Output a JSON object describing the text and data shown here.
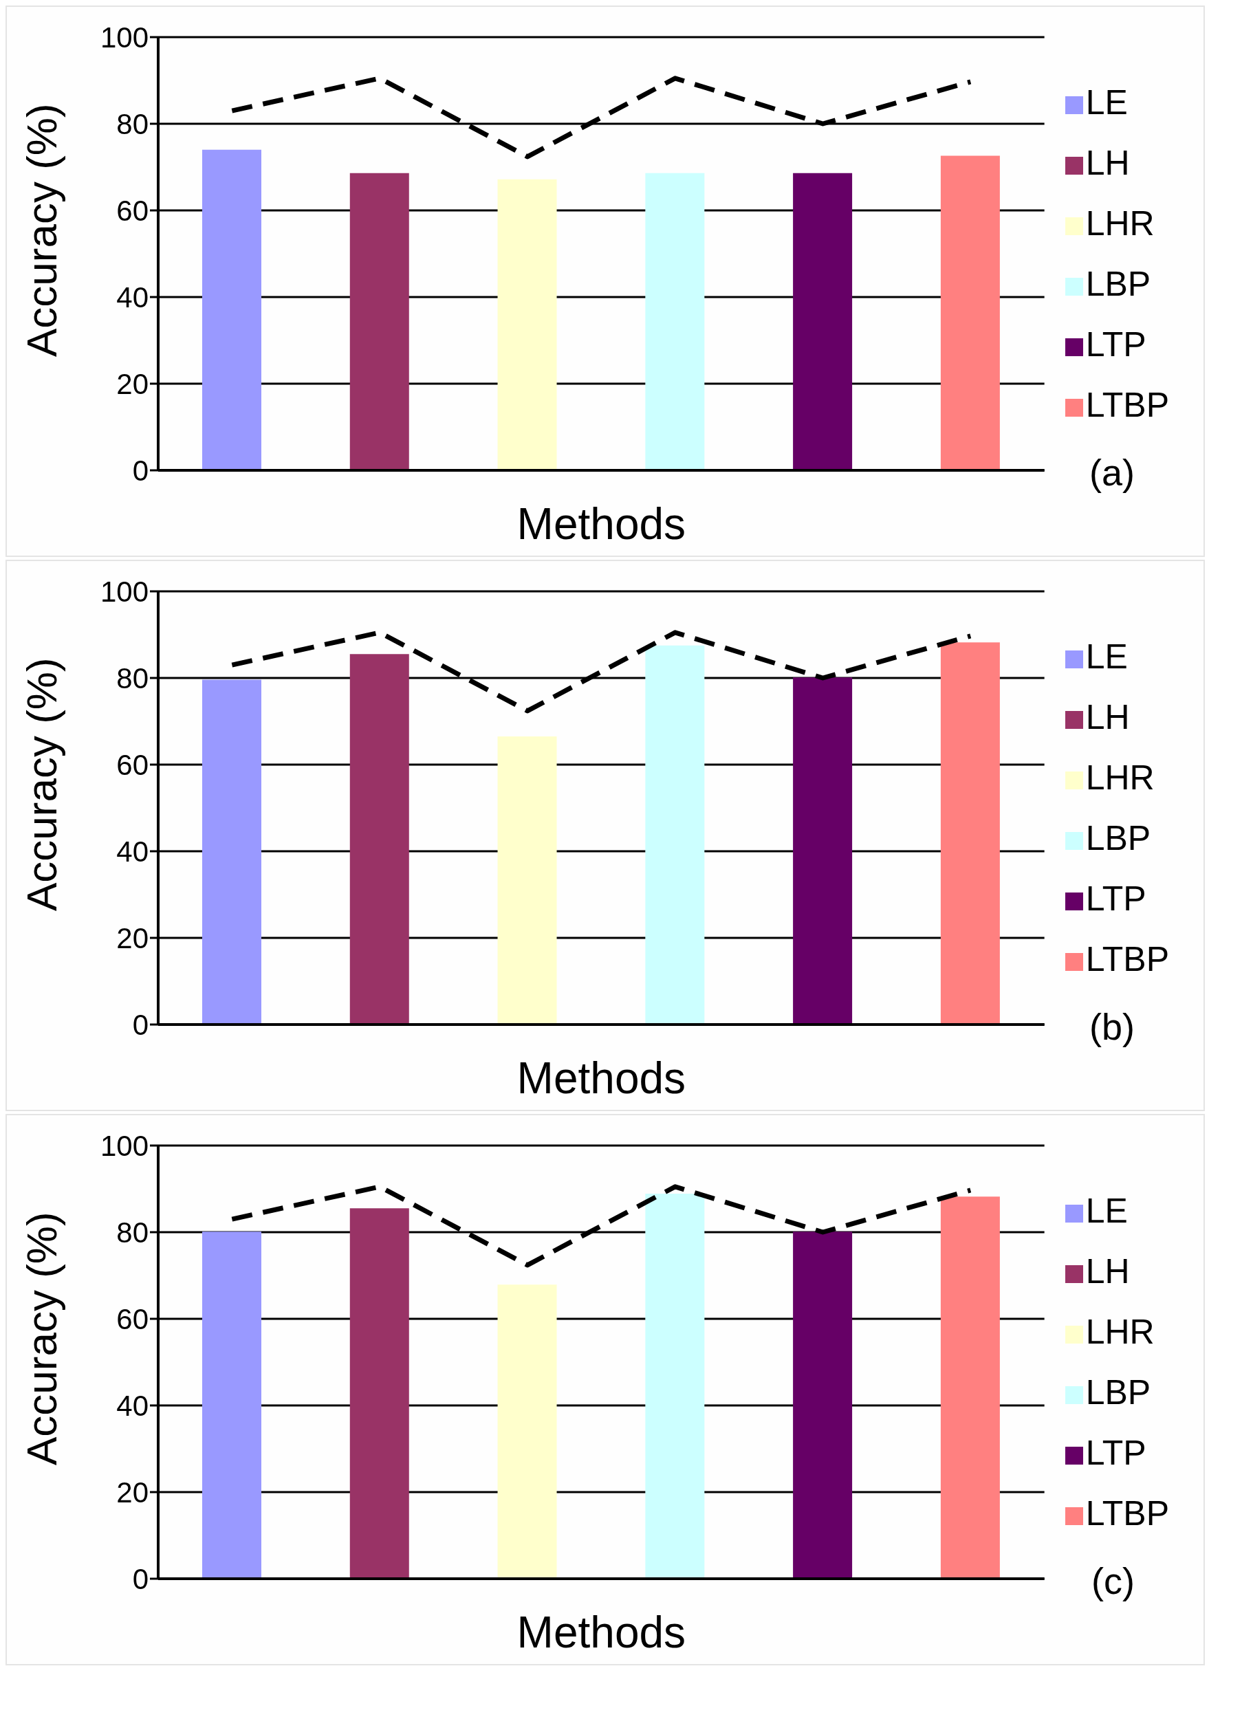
{
  "chart_data": [
    {
      "type": "bar",
      "xlabel": "Methods",
      "ylabel": "Accuracy (%)",
      "categories": [
        null,
        null,
        null,
        null,
        null,
        null
      ],
      "ylim": [
        0,
        100
      ],
      "yticks": [
        0,
        20,
        40,
        60,
        80,
        100
      ],
      "grid": "y",
      "legend": "right",
      "tick_labels": "y",
      "stacked": true,
      "annotations": [
        "(a)"
      ],
      "series": [
        {
          "name": "LE",
          "color": "#9999ff",
          "values": [
            74.0,
            null,
            null,
            null,
            null,
            null
          ]
        },
        {
          "name": "LH",
          "color": "#993366",
          "values": [
            null,
            68.6,
            null,
            null,
            null,
            null
          ]
        },
        {
          "name": "LHR",
          "color": "#ffffcc",
          "values": [
            null,
            null,
            67.2,
            null,
            null,
            null
          ]
        },
        {
          "name": "LBP",
          "color": "#ccffff",
          "values": [
            null,
            null,
            null,
            68.6,
            null,
            null
          ]
        },
        {
          "name": "LTP",
          "color": "#660066",
          "values": [
            null,
            null,
            null,
            null,
            68.6,
            null
          ]
        },
        {
          "name": "LTBP",
          "color": "#ff8080",
          "values": [
            null,
            null,
            null,
            null,
            null,
            72.6
          ]
        },
        {
          "type": "line",
          "color": "#000000",
          "line_style": "dashed",
          "marker": "none",
          "values": [
            83.0,
            90.5,
            72.4,
            90.5,
            80.0,
            89.7
          ]
        }
      ]
    },
    {
      "type": "bar",
      "xlabel": "Methods",
      "ylabel": "Accuracy (%)",
      "categories": [
        null,
        null,
        null,
        null,
        null,
        null
      ],
      "ylim": [
        0,
        100
      ],
      "yticks": [
        0,
        20,
        40,
        60,
        80,
        100
      ],
      "grid": "y",
      "legend": "right",
      "tick_labels": "y",
      "stacked": true,
      "annotations": [
        "(b)"
      ],
      "series": [
        {
          "name": "LE",
          "color": "#9999ff",
          "values": [
            79.6,
            null,
            null,
            null,
            null,
            null
          ]
        },
        {
          "name": "LH",
          "color": "#993366",
          "values": [
            null,
            85.5,
            null,
            null,
            null,
            null
          ]
        },
        {
          "name": "LHR",
          "color": "#ffffcc",
          "values": [
            null,
            null,
            66.5,
            null,
            null,
            null
          ]
        },
        {
          "name": "LBP",
          "color": "#ccffff",
          "values": [
            null,
            null,
            null,
            87.5,
            null,
            null
          ]
        },
        {
          "name": "LTP",
          "color": "#660066",
          "values": [
            null,
            null,
            null,
            null,
            80.1,
            null
          ]
        },
        {
          "name": "LTBP",
          "color": "#ff8080",
          "values": [
            null,
            null,
            null,
            null,
            null,
            88.2
          ]
        },
        {
          "type": "line",
          "color": "#000000",
          "line_style": "dashed",
          "marker": "none",
          "values": [
            83.0,
            90.5,
            72.4,
            90.5,
            80.0,
            89.7
          ]
        }
      ]
    },
    {
      "type": "bar",
      "xlabel": "Methods",
      "ylabel": "Accuracy (%)",
      "categories": [
        null,
        null,
        null,
        null,
        null,
        null
      ],
      "ylim": [
        0,
        100
      ],
      "yticks": [
        0,
        20,
        40,
        60,
        80,
        100
      ],
      "grid": "y",
      "legend": "right",
      "tick_labels": "y",
      "stacked": true,
      "annotations": [
        "(c)"
      ],
      "series": [
        {
          "name": "LE",
          "color": "#9999ff",
          "values": [
            80.1,
            null,
            null,
            null,
            null,
            null
          ]
        },
        {
          "name": "LH",
          "color": "#993366",
          "values": [
            null,
            85.5,
            null,
            null,
            null,
            null
          ]
        },
        {
          "name": "LHR",
          "color": "#ffffcc",
          "values": [
            null,
            null,
            67.9,
            null,
            null,
            null
          ]
        },
        {
          "name": "LBP",
          "color": "#ccffff",
          "values": [
            null,
            null,
            null,
            88.9,
            null,
            null
          ]
        },
        {
          "name": "LTP",
          "color": "#660066",
          "values": [
            null,
            null,
            null,
            null,
            80.1,
            null
          ]
        },
        {
          "name": "LTBP",
          "color": "#ff8080",
          "values": [
            null,
            null,
            null,
            null,
            null,
            88.2
          ]
        },
        {
          "type": "line",
          "color": "#000000",
          "line_style": "dashed",
          "marker": "none",
          "values": [
            83.0,
            90.5,
            72.4,
            90.5,
            80.0,
            89.7
          ]
        }
      ]
    }
  ]
}
